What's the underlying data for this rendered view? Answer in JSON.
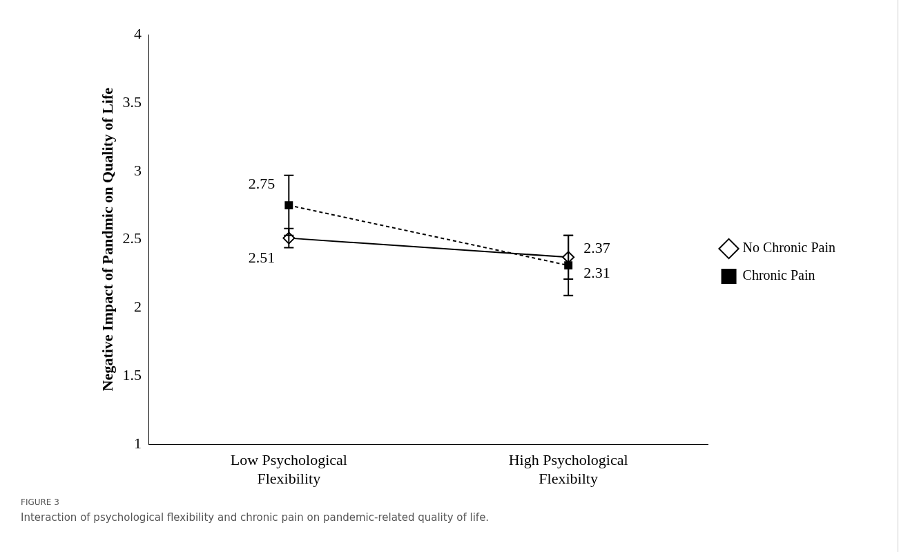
{
  "chart_data": {
    "type": "line",
    "ylabel": "Negative Impact of Pandmic on Quality of Life",
    "categories": [
      "Low Psychological Flexibility",
      "High Psychological Flexibilty"
    ],
    "series": [
      {
        "name": "No Chronic Pain",
        "color": "#000000",
        "values": [
          2.51,
          2.37
        ],
        "errors": [
          0.07,
          0.16
        ],
        "marker": "diamond",
        "line_style": "solid"
      },
      {
        "name": "Chronic Pain",
        "color": "#000000",
        "values": [
          2.75,
          2.31
        ],
        "errors": [
          0.22,
          0.22
        ],
        "marker": "square",
        "line_style": "dashed"
      }
    ],
    "ylim": [
      1,
      4
    ],
    "yticks": [
      1,
      1.5,
      2,
      2.5,
      3,
      3.5,
      4
    ],
    "grid": false,
    "legend": "right",
    "data_labels": true,
    "annotations": [
      "FIGURE 3",
      "Interaction of psychological flexibility and chronic pain on pandemic-related quality of life."
    ]
  }
}
